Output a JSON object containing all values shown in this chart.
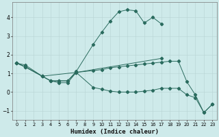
{
  "xlabel": "Humidex (Indice chaleur)",
  "bg_color": "#ceeaea",
  "line_color": "#2a6b5e",
  "grid_color": "#b8d4d4",
  "xlim": [
    -0.5,
    23.5
  ],
  "ylim": [
    -1.5,
    4.8
  ],
  "yticks": [
    -1,
    0,
    1,
    2,
    3,
    4
  ],
  "xticks": [
    0,
    1,
    2,
    3,
    4,
    5,
    6,
    7,
    8,
    9,
    10,
    11,
    12,
    13,
    14,
    15,
    16,
    17,
    18,
    19,
    20,
    21,
    22,
    23
  ],
  "series1_x": [
    0,
    1,
    3,
    4,
    5,
    6,
    7,
    9,
    10,
    11,
    12,
    13,
    14,
    15,
    16,
    17
  ],
  "series1_y": [
    1.55,
    1.45,
    0.85,
    0.6,
    0.6,
    0.6,
    1.1,
    2.55,
    3.2,
    3.8,
    4.3,
    4.4,
    4.35,
    3.7,
    4.0,
    3.65
  ],
  "series2_x": [
    0,
    1,
    3,
    7,
    17
  ],
  "series2_y": [
    1.55,
    1.35,
    0.85,
    1.05,
    1.8
  ],
  "series3_x": [
    0,
    1,
    3,
    4,
    5,
    6,
    7,
    9,
    10,
    11,
    12,
    13,
    14,
    15,
    16,
    17,
    18,
    19,
    20,
    21,
    22,
    23
  ],
  "series3_y": [
    1.55,
    1.35,
    0.85,
    0.6,
    0.6,
    0.6,
    1.05,
    1.15,
    1.2,
    1.3,
    1.35,
    1.4,
    1.45,
    1.5,
    1.55,
    1.6,
    1.65,
    1.65,
    0.55,
    -0.15,
    -1.1,
    -0.65
  ],
  "series4_x": [
    0,
    1,
    3,
    4,
    5,
    6,
    7,
    9,
    10,
    11,
    12,
    13,
    14,
    15,
    16,
    17,
    18,
    19,
    20,
    21,
    22,
    23
  ],
  "series4_y": [
    1.55,
    1.35,
    0.85,
    0.6,
    0.5,
    0.5,
    1.05,
    0.25,
    0.15,
    0.05,
    -0.0,
    -0.0,
    0.0,
    0.05,
    0.1,
    0.2,
    0.2,
    0.2,
    -0.15,
    -0.3,
    -1.1,
    -0.65
  ]
}
